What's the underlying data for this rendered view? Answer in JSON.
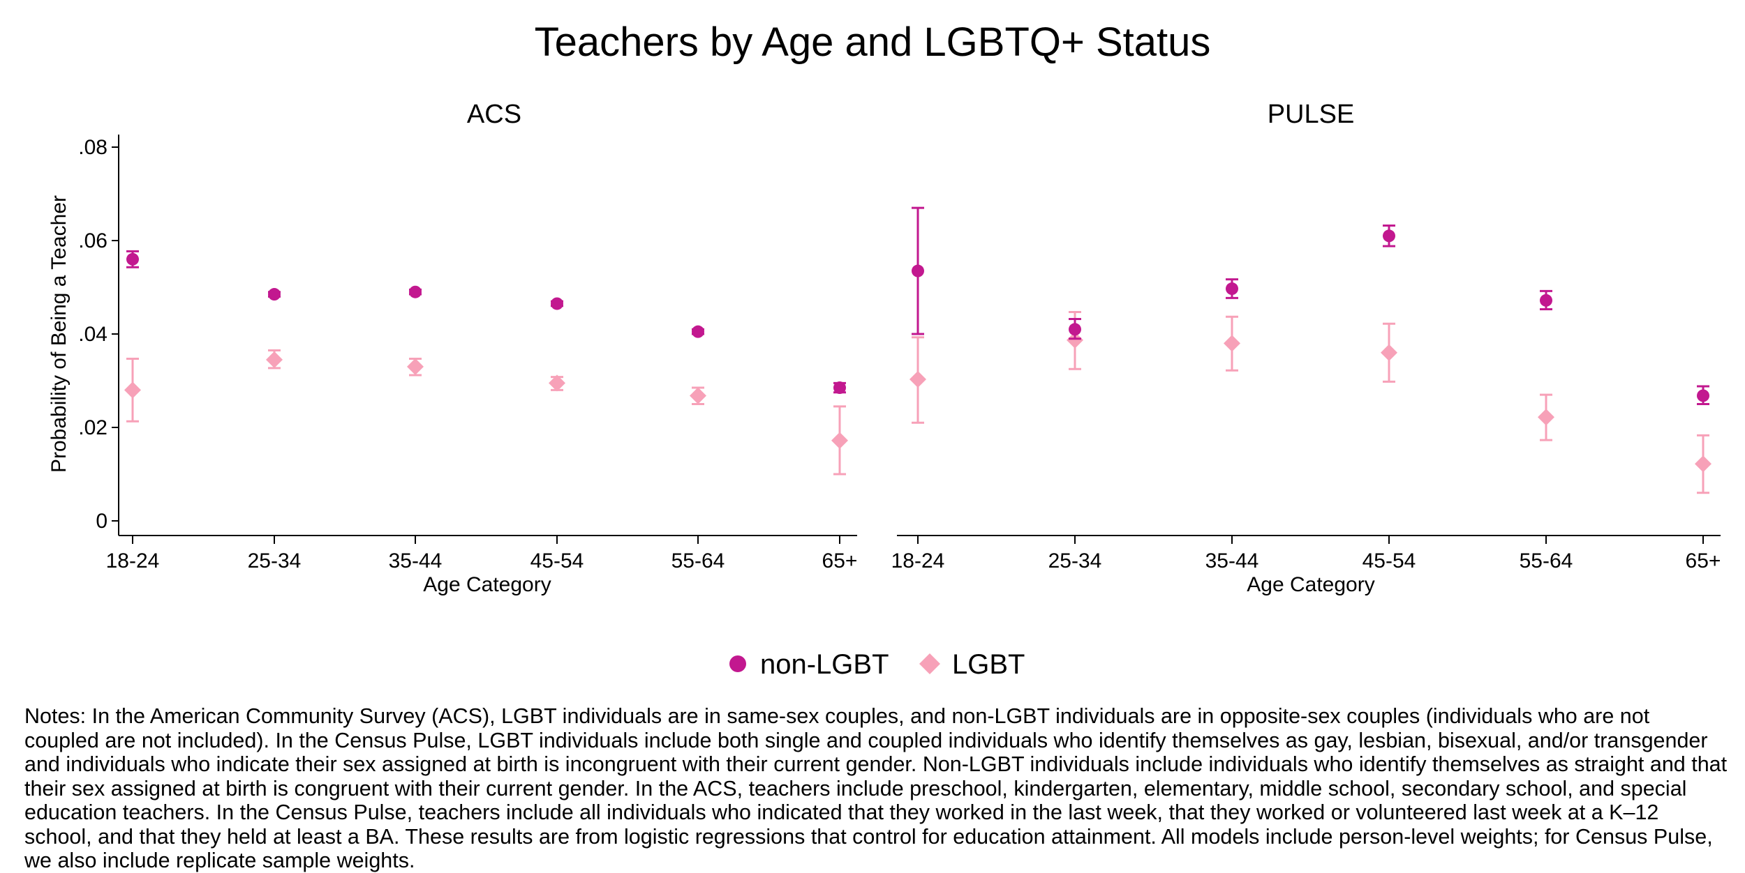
{
  "colors": {
    "non_lgbt": "#c2188f",
    "lgbt": "#f7a1b8",
    "axis": "#000000"
  },
  "chart_data": {
    "type": "scatter",
    "title": "Teachers by Age and LGBTQ+ Status",
    "ylabel": "Probability of Being a Teacher",
    "ylim": [
      0,
      0.08
    ],
    "yticks": [
      0,
      0.02,
      0.04,
      0.06,
      0.08
    ],
    "ytick_labels": [
      "0",
      ".02",
      ".04",
      ".06",
      ".08"
    ],
    "legend": [
      {
        "name": "non-LGBT",
        "marker": "circle"
      },
      {
        "name": "LGBT",
        "marker": "diamond"
      }
    ],
    "panels": [
      {
        "title": "ACS",
        "xlabel": "Age Category",
        "categories": [
          "18-24",
          "25-34",
          "35-44",
          "45-54",
          "55-64",
          "65+"
        ],
        "series": [
          {
            "name": "non-LGBT",
            "values": [
              0.056,
              0.0485,
              0.049,
              0.0465,
              0.0405,
              0.0285
            ],
            "lower": [
              0.0543,
              0.048,
              0.0485,
              0.046,
              0.04,
              0.0275
            ],
            "upper": [
              0.0577,
              0.049,
              0.0495,
              0.047,
              0.041,
              0.0295
            ]
          },
          {
            "name": "LGBT",
            "values": [
              0.028,
              0.0345,
              0.033,
              0.0295,
              0.0268,
              0.0172
            ],
            "lower": [
              0.0213,
              0.0327,
              0.0312,
              0.028,
              0.025,
              0.01
            ],
            "upper": [
              0.0347,
              0.0365,
              0.0347,
              0.0308,
              0.0285,
              0.0245
            ]
          }
        ]
      },
      {
        "title": "PULSE",
        "xlabel": "Age Category",
        "categories": [
          "18-24",
          "25-34",
          "35-44",
          "45-54",
          "55-64",
          "65+"
        ],
        "series": [
          {
            "name": "non-LGBT",
            "values": [
              0.0535,
              0.041,
              0.0497,
              0.061,
              0.0472,
              0.0268
            ],
            "lower": [
              0.04,
              0.039,
              0.0477,
              0.0588,
              0.0453,
              0.025
            ],
            "upper": [
              0.067,
              0.0432,
              0.0517,
              0.0632,
              0.0492,
              0.0288
            ]
          },
          {
            "name": "LGBT",
            "values": [
              0.0303,
              0.0387,
              0.038,
              0.036,
              0.0222,
              0.0122
            ],
            "lower": [
              0.021,
              0.0325,
              0.0322,
              0.0298,
              0.0173,
              0.006
            ],
            "upper": [
              0.0393,
              0.0447,
              0.0437,
              0.0422,
              0.027,
              0.0183
            ]
          }
        ]
      }
    ]
  },
  "notes": "Notes: In the American Community Survey (ACS), LGBT individuals are in same-sex couples, and non-LGBT individuals are in opposite-sex couples (individuals who are not coupled are not included). In the Census Pulse, LGBT individuals include both single and coupled individuals who identify themselves as gay, lesbian, bisexual, and/or transgender and individuals who indicate their sex assigned at birth is incongruent with their current gender. Non-LGBT individuals include individuals who identify themselves as straight and that their sex assigned at birth is congruent with their current gender. In the ACS, teachers include preschool, kindergarten, elementary, middle school, secondary school, and special education teachers. In the Census Pulse, teachers include all individuals who indicated that they worked in the last week, that they worked or volunteered last week at a K–12 school, and that they held at least a BA. These results are from logistic regressions that control for education attainment. All models include person-level weights; for Census Pulse, we also include replicate sample weights."
}
